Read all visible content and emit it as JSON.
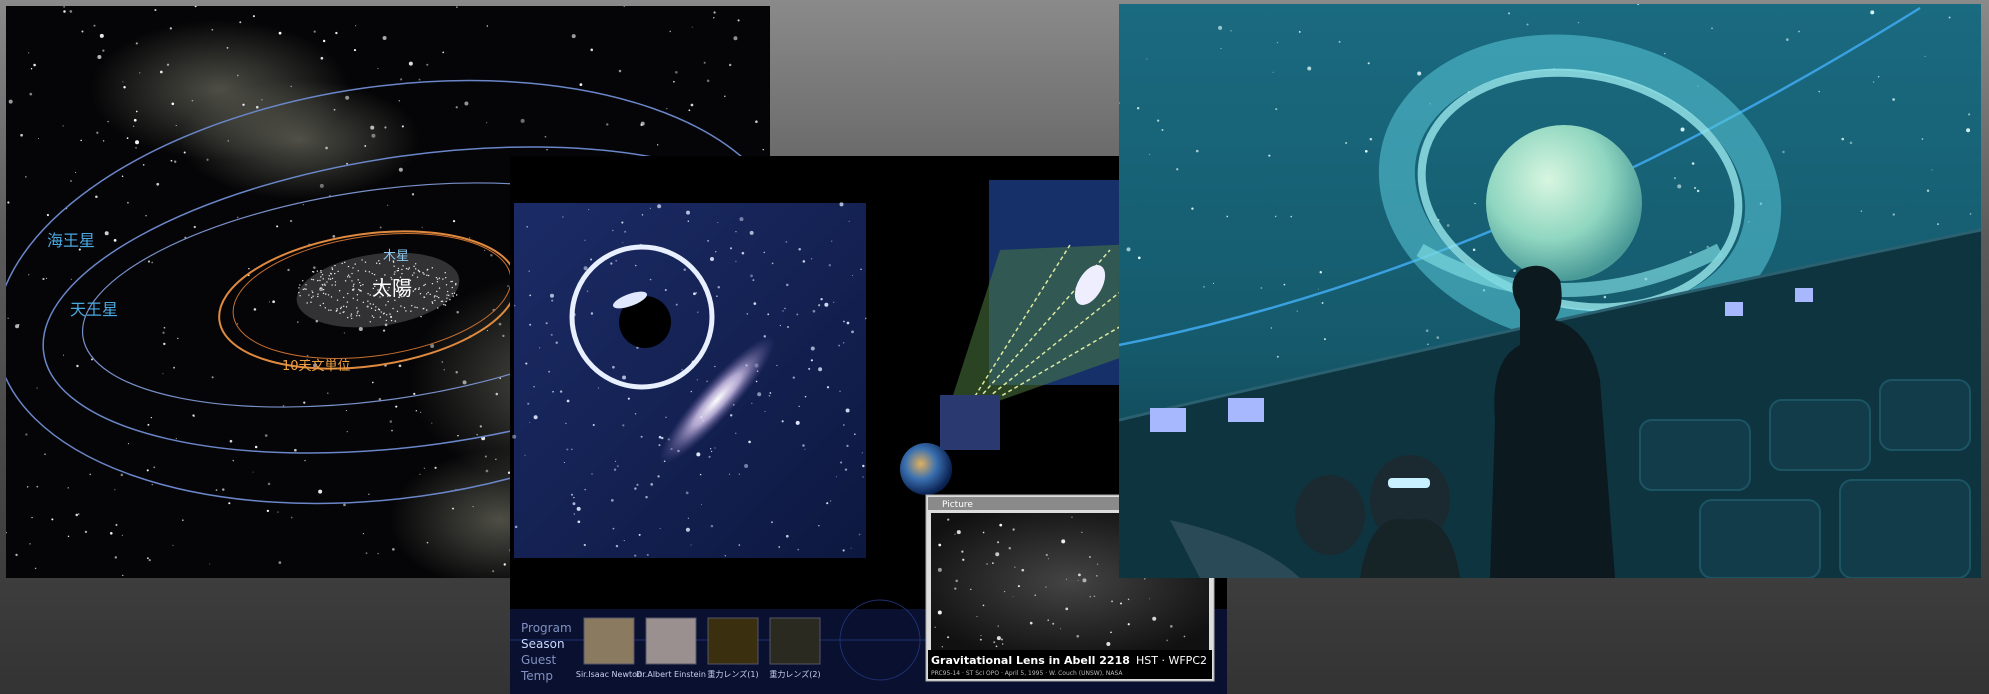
{
  "solar_system": {
    "labels": {
      "neptune": "海王星",
      "uranus": "天王星",
      "jupiter": "木星",
      "sun": "太陽",
      "distance": "10天文単位"
    }
  },
  "lens_program": {
    "menu": [
      "Program",
      "Season",
      "Guest",
      "Temp"
    ],
    "thumbnails": [
      "Sir.Isaac Newton",
      "Dr.Albert Einstein",
      "重力レンズ(1)",
      "重力レンズ(2)"
    ],
    "window": {
      "title": "Picture",
      "caption": "Gravitational Lens in Abell 2218",
      "instrument": "HST · WFPC2",
      "credit": "PRC95-14 · ST ScI OPO · April 5, 1995 · W. Couch (UNSW), NASA"
    }
  }
}
